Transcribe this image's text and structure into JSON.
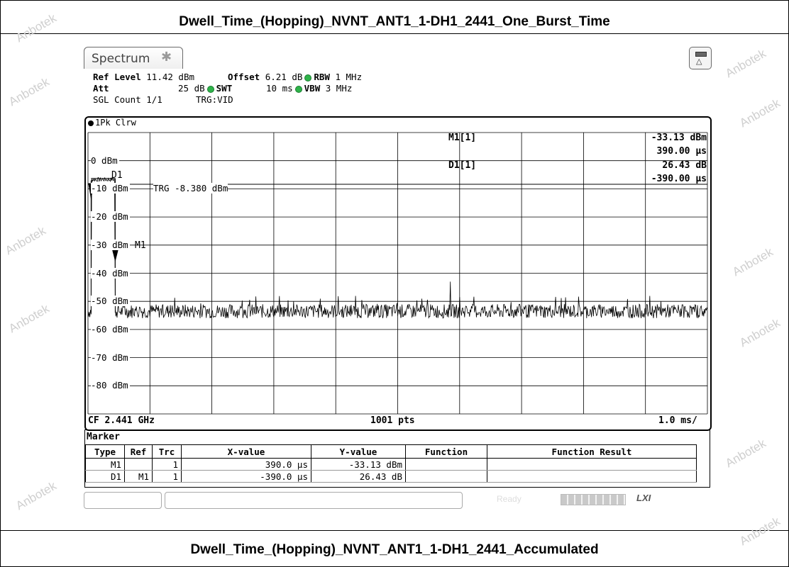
{
  "captions": {
    "top": "Dwell_Time_(Hopping)_NVNT_ANT1_1-DH1_2441_One_Burst_Time",
    "bottom": "Dwell_Time_(Hopping)_NVNT_ANT1_1-DH1_2441_Accumulated"
  },
  "watermark": "Anbotek",
  "tab": {
    "label": "Spectrum"
  },
  "settings": {
    "ref_level_label": "Ref Level",
    "ref_level_value": "11.42 dBm",
    "offset_label": "Offset",
    "offset_value": "6.21 dB",
    "rbw_label": "RBW",
    "rbw_value": "1 MHz",
    "att_label": "Att",
    "att_value": "25 dB",
    "swt_label": "SWT",
    "swt_value": "10 ms",
    "vbw_label": "VBW",
    "vbw_value": "3 MHz",
    "sgl_count": "SGL Count 1/1",
    "trg": "TRG:VID"
  },
  "trace": {
    "label": "1Pk Clrw"
  },
  "y_axis_labels": [
    "0 dBm",
    "-10 dBm",
    "-20 dBm",
    "-30 dBm",
    "-40 dBm",
    "-50 dBm",
    "-60 dBm",
    "-70 dBm",
    "-80 dBm"
  ],
  "trigger_line": {
    "label": "TRG -8.380 dBm",
    "level_dbm": -8.38
  },
  "markers": {
    "m1_name": "M1[1]",
    "m1_level": "-33.13 dBm",
    "m1_time": "390.00 µs",
    "d1_name": "D1[1]",
    "d1_level": "26.43 dB",
    "d1_time": "-390.00 µs",
    "m1_tag": "M1",
    "d1_tag": "D1"
  },
  "footer": {
    "cf": "CF 2.441 GHz",
    "points": "1001 pts",
    "span_div": "1.0 ms/"
  },
  "marker_table": {
    "title": "Marker",
    "headers": [
      "Type",
      "Ref",
      "Trc",
      "X-value",
      "Y-value",
      "Function",
      "Function Result"
    ],
    "rows": [
      [
        "M1",
        "",
        "1",
        "390.0 µs",
        "-33.13 dBm",
        "",
        ""
      ],
      [
        "D1",
        "M1",
        "1",
        "-390.0 µs",
        "26.43 dB",
        "",
        ""
      ]
    ]
  },
  "statusbar": {
    "ready": "Ready",
    "lxi": "LXI"
  },
  "chart_data": {
    "type": "line",
    "title": "",
    "xlabel": "",
    "ylabel": "",
    "x_unit": "ms",
    "xlim": [
      0,
      10
    ],
    "ylim": [
      -90,
      10
    ],
    "grid": true,
    "series": [
      {
        "noise_floor_dbm": -53.5,
        "burst_start_ms": 0.0,
        "burst_level_dbm": -6.7,
        "burst_end_ms": 0.39
      }
    ]
  },
  "colors": {
    "trace": "#000000",
    "grid": "#000000",
    "status_ok": "#2fb34a"
  }
}
